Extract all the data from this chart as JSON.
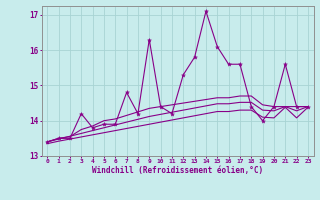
{
  "x": [
    0,
    1,
    2,
    3,
    4,
    5,
    6,
    7,
    8,
    9,
    10,
    11,
    12,
    13,
    14,
    15,
    16,
    17,
    18,
    19,
    20,
    21,
    22,
    23
  ],
  "line1": [
    13.4,
    13.5,
    13.5,
    14.2,
    13.8,
    13.9,
    13.9,
    14.8,
    14.2,
    16.3,
    14.4,
    14.2,
    15.3,
    15.8,
    17.1,
    16.1,
    15.6,
    15.6,
    14.4,
    14.0,
    14.4,
    15.6,
    14.4,
    14.4
  ],
  "line2": [
    13.4,
    13.5,
    13.55,
    13.75,
    13.85,
    14.0,
    14.05,
    14.15,
    14.25,
    14.35,
    14.4,
    14.45,
    14.5,
    14.55,
    14.6,
    14.65,
    14.65,
    14.7,
    14.7,
    14.45,
    14.4,
    14.4,
    14.4,
    14.4
  ],
  "line3": [
    13.4,
    13.48,
    13.56,
    13.64,
    13.72,
    13.8,
    13.88,
    13.96,
    14.04,
    14.12,
    14.18,
    14.24,
    14.3,
    14.36,
    14.42,
    14.48,
    14.48,
    14.52,
    14.52,
    14.3,
    14.28,
    14.4,
    14.28,
    14.4
  ],
  "line4": [
    13.35,
    13.42,
    13.48,
    13.54,
    13.6,
    13.66,
    13.72,
    13.78,
    13.84,
    13.9,
    13.96,
    14.02,
    14.08,
    14.14,
    14.2,
    14.26,
    14.26,
    14.3,
    14.3,
    14.1,
    14.08,
    14.38,
    14.08,
    14.38
  ],
  "line_color": "#880088",
  "bg_color": "#c8ecec",
  "grid_color": "#a8d4d4",
  "ylim": [
    13.0,
    17.25
  ],
  "yticks": [
    13,
    14,
    15,
    16,
    17
  ],
  "xlim": [
    -0.5,
    23.5
  ],
  "xlabel": "Windchill (Refroidissement éolien,°C)",
  "xlabel_color": "#880088",
  "tick_color": "#880088"
}
